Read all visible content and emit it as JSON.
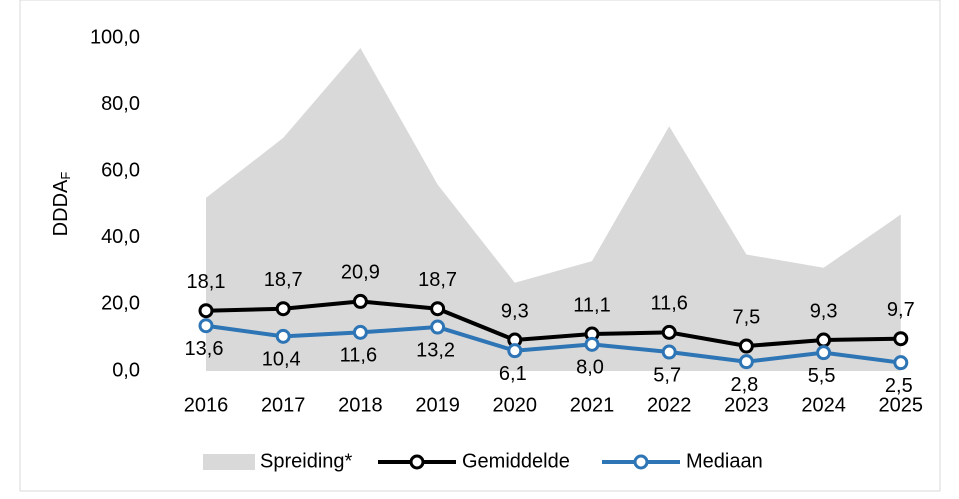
{
  "chart_data": {
    "type": "line",
    "categories": [
      "2016",
      "2017",
      "2018",
      "2019",
      "2020",
      "2021",
      "2022",
      "2023",
      "2024",
      "2025"
    ],
    "y_label": {
      "text": "DDDA",
      "subscript": "F"
    },
    "ylim": [
      0,
      100
    ],
    "yticks": [
      {
        "value": 0,
        "label": "0,0"
      },
      {
        "value": 20,
        "label": "20,0"
      },
      {
        "value": 40,
        "label": "40,0"
      },
      {
        "value": 60,
        "label": "60,0"
      },
      {
        "value": 80,
        "label": "80,0"
      },
      {
        "value": 100,
        "label": "100,0"
      }
    ],
    "series": [
      {
        "name": "Spreiding*",
        "kind": "area",
        "color": "#d9d9d9",
        "values": [
          52,
          70,
          97,
          56,
          26.5,
          33,
          73.5,
          35,
          31,
          47
        ]
      },
      {
        "name": "Gemiddelde",
        "kind": "line",
        "color": "#000000",
        "values": [
          18.1,
          18.7,
          20.9,
          18.7,
          9.3,
          11.1,
          11.6,
          7.5,
          9.3,
          9.7
        ],
        "value_labels": [
          "18,1",
          "18,7",
          "20,9",
          "18,7",
          "9,3",
          "11,1",
          "11,6",
          "7,5",
          "9,3",
          "9,7"
        ]
      },
      {
        "name": "Mediaan",
        "kind": "line",
        "color": "#2e75b6",
        "values": [
          13.6,
          10.4,
          11.6,
          13.2,
          6.1,
          8.0,
          5.7,
          2.8,
          5.5,
          2.5
        ],
        "value_labels": [
          "13,6",
          "10,4",
          "11,6",
          "13,2",
          "6,1",
          "8,0",
          "5,7",
          "2,8",
          "5,5",
          "2,5"
        ]
      }
    ]
  }
}
